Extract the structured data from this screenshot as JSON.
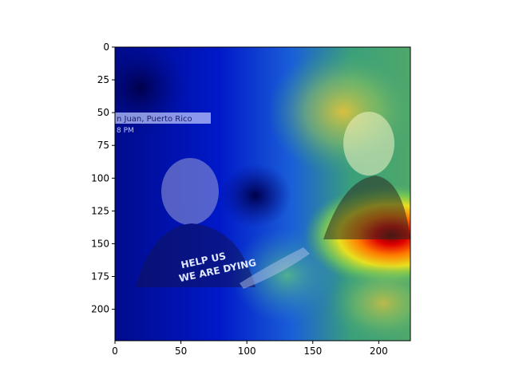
{
  "image": {
    "kind": "heatmap-overlay on photo",
    "colormap": "jet",
    "overlay_text": {
      "caption_line1": "n Juan, Puerto Rico",
      "caption_line2": "8 PM",
      "shirt_line1": "HELP US",
      "shirt_line2": "WE ARE DYING"
    }
  },
  "chart_data": {
    "type": "heatmap",
    "xlim": [
      0,
      224
    ],
    "ylim": [
      224,
      0
    ],
    "x_ticks": [
      0,
      50,
      100,
      150,
      200
    ],
    "y_ticks": [
      0,
      25,
      50,
      75,
      100,
      125,
      150,
      175,
      200
    ],
    "hotspots": [
      {
        "x": 205,
        "y": 143,
        "intensity": 1.0
      },
      {
        "x": 175,
        "y": 50,
        "intensity": 0.55
      },
      {
        "x": 130,
        "y": 175,
        "intensity": 0.5
      },
      {
        "x": 20,
        "y": 20,
        "intensity": 0.1
      }
    ]
  }
}
